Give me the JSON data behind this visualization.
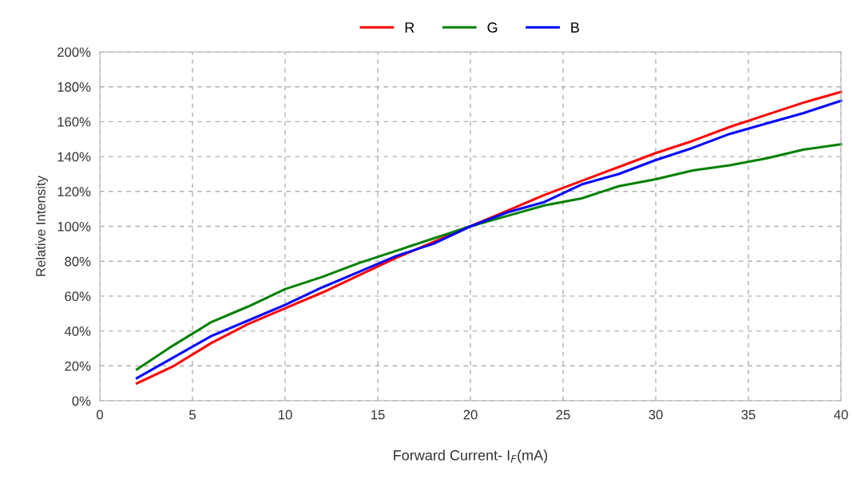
{
  "chart_data": {
    "type": "line",
    "xlabel": "Forward Current- I$_{F}$(mA)",
    "ylabel": "Relative Intensity",
    "x": [
      2,
      4,
      6,
      8,
      10,
      12,
      14,
      16,
      18,
      20,
      22,
      24,
      26,
      28,
      30,
      32,
      34,
      36,
      38,
      40
    ],
    "series": [
      {
        "name": "R",
        "color": "#ff0000",
        "values": [
          10,
          20,
          33,
          44,
          53,
          62,
          72,
          82,
          91,
          100,
          109,
          118,
          126,
          134,
          142,
          149,
          157,
          164,
          171,
          177
        ]
      },
      {
        "name": "G",
        "color": "#008000",
        "values": [
          18,
          32,
          45,
          54,
          64,
          71,
          79,
          86,
          93,
          100,
          106,
          112,
          116,
          123,
          127,
          132,
          135,
          139,
          144,
          147
        ]
      },
      {
        "name": "B",
        "color": "#0000ff",
        "values": [
          13,
          25,
          37,
          46,
          55,
          65,
          74,
          83,
          90,
          100,
          108,
          114,
          124,
          130,
          138,
          145,
          153,
          159,
          165,
          172
        ]
      }
    ],
    "xlim": [
      0,
      40
    ],
    "xticks": [
      0,
      5,
      10,
      15,
      20,
      25,
      30,
      35,
      40
    ],
    "ylim": [
      0,
      200
    ],
    "yticks": [
      {
        "value": 0,
        "label": "0%"
      },
      {
        "value": 20,
        "label": "20%"
      },
      {
        "value": 40,
        "label": "40%"
      },
      {
        "value": 60,
        "label": "60%"
      },
      {
        "value": 80,
        "label": "80%"
      },
      {
        "value": 100,
        "label": "100%"
      },
      {
        "value": 120,
        "label": "120%"
      },
      {
        "value": 140,
        "label": "140%"
      },
      {
        "value": 160,
        "label": "160%"
      },
      {
        "value": 180,
        "label": "180%"
      },
      {
        "value": 200,
        "label": "200%"
      }
    ],
    "grid": true,
    "legend": "top",
    "line_style": "solid",
    "marker": "none"
  }
}
